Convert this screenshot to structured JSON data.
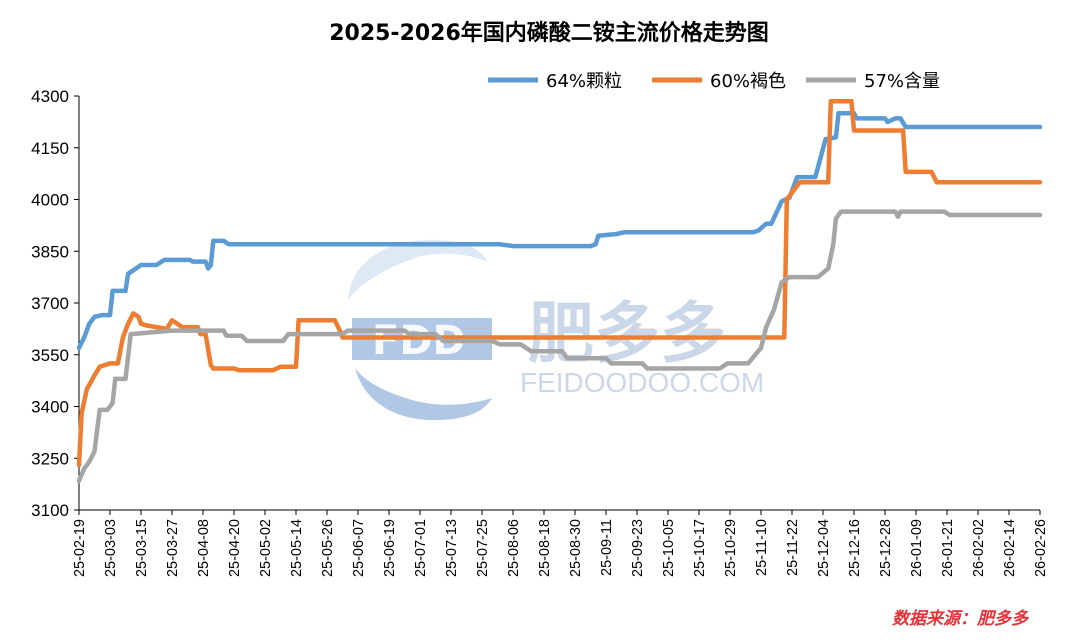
{
  "chart_data": {
    "type": "line",
    "title": "2025-2026年国内磷酸二铵主流价格走势图",
    "source": "数据来源：肥多多",
    "watermark": {
      "brand": "肥多多",
      "logo_text": "FDD",
      "url": "FEIDOODOO.COM"
    },
    "ylim": [
      3100,
      4300
    ],
    "yticks": [
      3100,
      3250,
      3400,
      3550,
      3700,
      3850,
      4000,
      4150,
      4300
    ],
    "grid": false,
    "legend_position": "top-right",
    "x_start": "2025-02-19",
    "x_end": "2026-02-26",
    "x_tick_labels": [
      "25-02-19",
      "25-03-03",
      "25-03-15",
      "25-03-27",
      "25-04-08",
      "25-04-20",
      "25-05-02",
      "25-05-14",
      "25-05-26",
      "25-06-07",
      "25-06-19",
      "25-07-01",
      "25-07-13",
      "25-07-25",
      "25-08-06",
      "25-08-18",
      "25-08-30",
      "25-09-11",
      "25-09-23",
      "25-10-05",
      "25-10-17",
      "25-10-29",
      "25-11-10",
      "25-11-22",
      "25-12-04",
      "25-12-16",
      "25-12-28",
      "26-01-09",
      "26-01-21",
      "26-02-02",
      "26-02-14",
      "26-02-26"
    ],
    "series": [
      {
        "name": "64%颗粒",
        "color": "#5b9bd5",
        "points": [
          [
            "2025-02-19",
            3570
          ],
          [
            "2025-02-21",
            3600
          ],
          [
            "2025-02-23",
            3640
          ],
          [
            "2025-02-25",
            3660
          ],
          [
            "2025-02-28",
            3665
          ],
          [
            "2025-03-03",
            3665
          ],
          [
            "2025-03-04",
            3735
          ],
          [
            "2025-03-09",
            3735
          ],
          [
            "2025-03-10",
            3785
          ],
          [
            "2025-03-12",
            3795
          ],
          [
            "2025-03-15",
            3810
          ],
          [
            "2025-03-21",
            3810
          ],
          [
            "2025-03-24",
            3825
          ],
          [
            "2025-04-03",
            3825
          ],
          [
            "2025-04-04",
            3820
          ],
          [
            "2025-04-09",
            3820
          ],
          [
            "2025-04-10",
            3800
          ],
          [
            "2025-04-11",
            3810
          ],
          [
            "2025-04-12",
            3880
          ],
          [
            "2025-04-16",
            3880
          ],
          [
            "2025-04-18",
            3870
          ],
          [
            "2025-08-01",
            3870
          ],
          [
            "2025-08-06",
            3865
          ],
          [
            "2025-09-05",
            3865
          ],
          [
            "2025-09-07",
            3870
          ],
          [
            "2025-09-08",
            3895
          ],
          [
            "2025-09-15",
            3900
          ],
          [
            "2025-09-18",
            3905
          ],
          [
            "2025-11-07",
            3905
          ],
          [
            "2025-11-09",
            3910
          ],
          [
            "2025-11-12",
            3930
          ],
          [
            "2025-11-14",
            3930
          ],
          [
            "2025-11-18",
            3995
          ],
          [
            "2025-11-21",
            4005
          ],
          [
            "2025-11-24",
            4065
          ],
          [
            "2025-12-01",
            4065
          ],
          [
            "2025-12-05",
            4175
          ],
          [
            "2025-12-09",
            4180
          ],
          [
            "2025-12-10",
            4250
          ],
          [
            "2025-12-16",
            4250
          ],
          [
            "2025-12-17",
            4235
          ],
          [
            "2025-12-28",
            4235
          ],
          [
            "2025-12-29",
            4225
          ],
          [
            "2026-01-01",
            4235
          ],
          [
            "2026-01-03",
            4235
          ],
          [
            "2026-01-05",
            4210
          ],
          [
            "2026-02-26",
            4210
          ]
        ]
      },
      {
        "name": "60%褐色",
        "color": "#ed7d31",
        "points": [
          [
            "2025-02-19",
            3230
          ],
          [
            "2025-02-20",
            3380
          ],
          [
            "2025-02-22",
            3450
          ],
          [
            "2025-02-25",
            3490
          ],
          [
            "2025-02-27",
            3515
          ],
          [
            "2025-03-03",
            3525
          ],
          [
            "2025-03-06",
            3525
          ],
          [
            "2025-03-08",
            3600
          ],
          [
            "2025-03-10",
            3640
          ],
          [
            "2025-03-12",
            3670
          ],
          [
            "2025-03-14",
            3660
          ],
          [
            "2025-03-15",
            3640
          ],
          [
            "2025-03-17",
            3635
          ],
          [
            "2025-03-21",
            3630
          ],
          [
            "2025-03-25",
            3625
          ],
          [
            "2025-03-27",
            3650
          ],
          [
            "2025-03-29",
            3640
          ],
          [
            "2025-03-31",
            3630
          ],
          [
            "2025-04-06",
            3630
          ],
          [
            "2025-04-07",
            3610
          ],
          [
            "2025-04-09",
            3610
          ],
          [
            "2025-04-11",
            3520
          ],
          [
            "2025-04-12",
            3510
          ],
          [
            "2025-04-20",
            3510
          ],
          [
            "2025-04-22",
            3505
          ],
          [
            "2025-05-05",
            3505
          ],
          [
            "2025-05-08",
            3515
          ],
          [
            "2025-05-14",
            3515
          ],
          [
            "2025-05-15",
            3650
          ],
          [
            "2025-05-29",
            3650
          ],
          [
            "2025-05-31",
            3620
          ],
          [
            "2025-06-01",
            3600
          ],
          [
            "2025-11-19",
            3600
          ],
          [
            "2025-11-20",
            4000
          ],
          [
            "2025-11-23",
            4030
          ],
          [
            "2025-11-25",
            4050
          ],
          [
            "2025-12-06",
            4050
          ],
          [
            "2025-12-07",
            4285
          ],
          [
            "2025-12-15",
            4285
          ],
          [
            "2025-12-16",
            4200
          ],
          [
            "2026-01-04",
            4200
          ],
          [
            "2026-01-05",
            4080
          ],
          [
            "2026-01-15",
            4080
          ],
          [
            "2026-01-17",
            4050
          ],
          [
            "2026-02-26",
            4050
          ]
        ]
      },
      {
        "name": "57%含量",
        "color": "#a5a5a5",
        "points": [
          [
            "2025-02-19",
            3185
          ],
          [
            "2025-02-21",
            3220
          ],
          [
            "2025-02-23",
            3240
          ],
          [
            "2025-02-25",
            3270
          ],
          [
            "2025-02-27",
            3390
          ],
          [
            "2025-03-02",
            3390
          ],
          [
            "2025-03-04",
            3410
          ],
          [
            "2025-03-05",
            3480
          ],
          [
            "2025-03-09",
            3480
          ],
          [
            "2025-03-11",
            3610
          ],
          [
            "2025-03-27",
            3620
          ],
          [
            "2025-04-16",
            3620
          ],
          [
            "2025-04-17",
            3605
          ],
          [
            "2025-04-23",
            3605
          ],
          [
            "2025-04-25",
            3590
          ],
          [
            "2025-05-09",
            3590
          ],
          [
            "2025-05-11",
            3610
          ],
          [
            "2025-06-01",
            3610
          ],
          [
            "2025-06-03",
            3620
          ],
          [
            "2025-06-25",
            3620
          ],
          [
            "2025-06-27",
            3610
          ],
          [
            "2025-07-07",
            3610
          ],
          [
            "2025-07-10",
            3590
          ],
          [
            "2025-07-29",
            3590
          ],
          [
            "2025-08-01",
            3580
          ],
          [
            "2025-08-09",
            3580
          ],
          [
            "2025-08-13",
            3560
          ],
          [
            "2025-08-25",
            3560
          ],
          [
            "2025-08-27",
            3540
          ],
          [
            "2025-09-11",
            3540
          ],
          [
            "2025-09-13",
            3525
          ],
          [
            "2025-09-25",
            3525
          ],
          [
            "2025-09-27",
            3510
          ],
          [
            "2025-10-25",
            3510
          ],
          [
            "2025-10-28",
            3525
          ],
          [
            "2025-11-05",
            3525
          ],
          [
            "2025-11-10",
            3570
          ],
          [
            "2025-11-12",
            3630
          ],
          [
            "2025-11-15",
            3680
          ],
          [
            "2025-11-18",
            3760
          ],
          [
            "2025-11-21",
            3775
          ],
          [
            "2025-12-02",
            3775
          ],
          [
            "2025-12-06",
            3800
          ],
          [
            "2025-12-08",
            3870
          ],
          [
            "2025-12-09",
            3945
          ],
          [
            "2025-12-11",
            3965
          ],
          [
            "2026-01-01",
            3965
          ],
          [
            "2026-01-02",
            3950
          ],
          [
            "2026-01-03",
            3965
          ],
          [
            "2026-01-20",
            3965
          ],
          [
            "2026-01-22",
            3955
          ],
          [
            "2026-02-26",
            3955
          ]
        ]
      }
    ]
  }
}
